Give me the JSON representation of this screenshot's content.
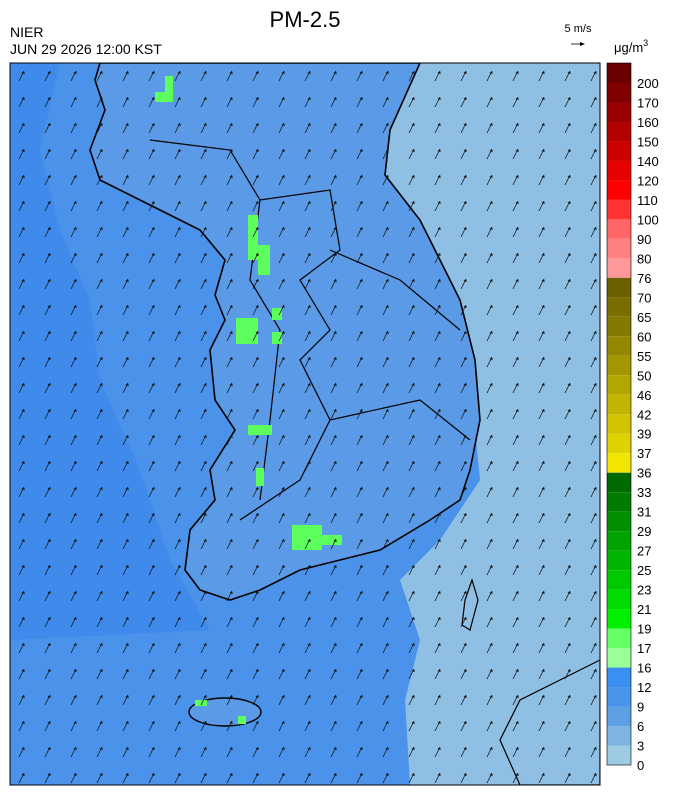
{
  "header": {
    "title": "PM-2.5",
    "agency": "NIER",
    "timestamp": "JUN 29 2026 12:00 KST"
  },
  "wind_key": {
    "label": "5 m/s"
  },
  "colorbar": {
    "unit": "μg/m",
    "unit_power": "3",
    "ticks": [
      200,
      170,
      160,
      150,
      140,
      120,
      110,
      100,
      90,
      80,
      76,
      70,
      65,
      60,
      55,
      50,
      46,
      42,
      39,
      37,
      36,
      33,
      31,
      29,
      27,
      25,
      23,
      21,
      19,
      17,
      16,
      12,
      9,
      6,
      3,
      0
    ],
    "colors": [
      "#6b0000",
      "#800000",
      "#990000",
      "#b30000",
      "#cc0000",
      "#e60000",
      "#ff0000",
      "#ff3333",
      "#ff6666",
      "#ff8080",
      "#ff9999",
      "#6b6000",
      "#7a6e00",
      "#857a00",
      "#948800",
      "#a39600",
      "#b3a600",
      "#c2b400",
      "#d1c300",
      "#e0d200",
      "#f2e600",
      "#006b00",
      "#007d00",
      "#009000",
      "#00a300",
      "#00b600",
      "#00c900",
      "#00dc00",
      "#00f000",
      "#66ff66",
      "#99ff99",
      "#3a8ff0",
      "#4a94ea",
      "#5fa0e5",
      "#7fb4e2",
      "#9ccbe3"
    ]
  }
}
